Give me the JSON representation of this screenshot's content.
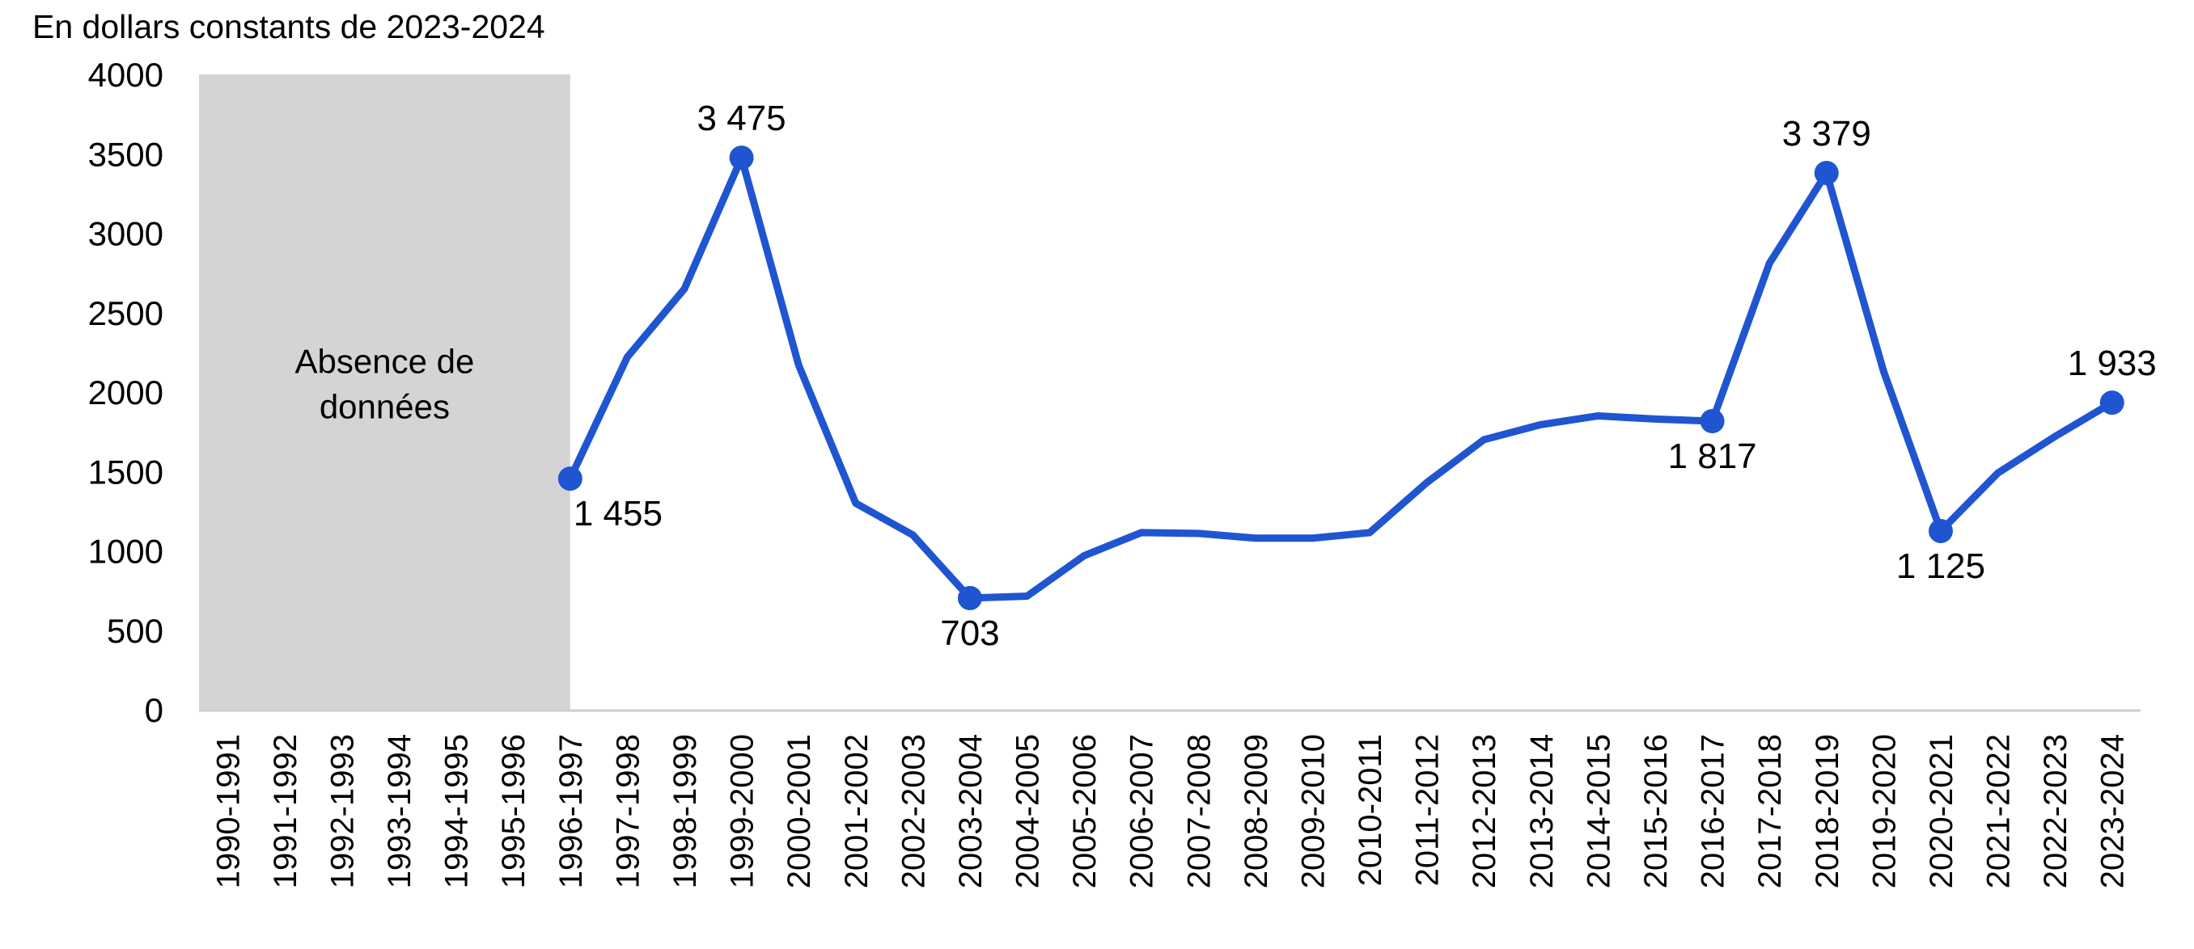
{
  "chart_data": {
    "type": "line",
    "unit_label": "En dollars constants de 2023-2024",
    "no_data_label": [
      "Absence de",
      "données"
    ],
    "no_data_range": [
      "1990-1991",
      "1996-1997"
    ],
    "ylim": [
      0,
      4000
    ],
    "yticks": [
      "0",
      "500",
      "1000",
      "1500",
      "2000",
      "2500",
      "3000",
      "3500",
      "4000"
    ],
    "ytick_values": [
      0,
      500,
      1000,
      1500,
      2000,
      2500,
      3000,
      3500,
      4000
    ],
    "grid": false,
    "legend": "none",
    "series_color": "#1f55d1",
    "no_data_color": "#d4d4d4",
    "axis_color": "#cfcfcf",
    "categories": [
      "1990-1991",
      "1991-1992",
      "1992-1993",
      "1993-1994",
      "1994-1995",
      "1995-1996",
      "1996-1997",
      "1997-1998",
      "1998-1999",
      "1999-2000",
      "2000-2001",
      "2001-2002",
      "2002-2003",
      "2003-2004",
      "2004-2005",
      "2005-2006",
      "2006-2007",
      "2007-2008",
      "2008-2009",
      "2009-2010",
      "2010-2011",
      "2011-2012",
      "2012-2013",
      "2013-2014",
      "2014-2015",
      "2015-2016",
      "2016-2017",
      "2017-2018",
      "2018-2019",
      "2019-2020",
      "2020-2021",
      "2021-2022",
      "2022-2023",
      "2023-2024"
    ],
    "values": [
      null,
      null,
      null,
      null,
      null,
      null,
      1455,
      2220,
      2650,
      3475,
      2170,
      1300,
      1100,
      703,
      715,
      970,
      1115,
      1110,
      1080,
      1080,
      1115,
      1430,
      1700,
      1795,
      1850,
      1830,
      1817,
      2810,
      3379,
      2130,
      1125,
      1490,
      1720,
      1933
    ],
    "data_labels": [
      {
        "category": "1996-1997",
        "text": "1 455",
        "position": "below-right"
      },
      {
        "category": "1999-2000",
        "text": "3 475",
        "position": "above"
      },
      {
        "category": "2003-2004",
        "text": "703",
        "position": "below"
      },
      {
        "category": "2016-2017",
        "text": "1 817",
        "position": "below"
      },
      {
        "category": "2018-2019",
        "text": "3 379",
        "position": "above"
      },
      {
        "category": "2020-2021",
        "text": "1 125",
        "position": "below"
      },
      {
        "category": "2023-2024",
        "text": "1 933",
        "position": "above"
      }
    ]
  }
}
